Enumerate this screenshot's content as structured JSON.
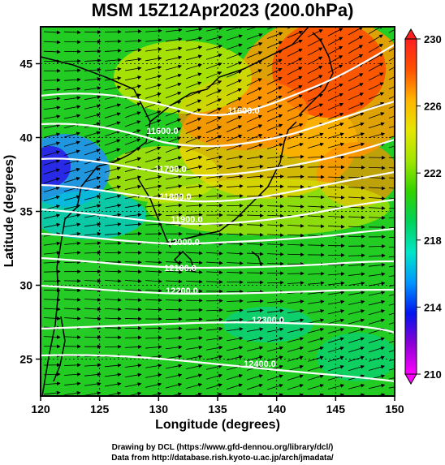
{
  "title": "MSM 15Z12Apr2023 (200.0hPa)",
  "xaxis": {
    "label": "Longitude (degrees)",
    "ticks": [
      "120",
      "125",
      "130",
      "135",
      "140",
      "145",
      "150"
    ],
    "range": [
      120,
      150
    ]
  },
  "yaxis": {
    "label": "Latitude  (degrees)",
    "ticks": [
      "25",
      "30",
      "35",
      "40",
      "45"
    ],
    "range": [
      22.5,
      47.5
    ]
  },
  "colorbar": {
    "ticks": [
      "230",
      "226",
      "222",
      "218",
      "214",
      "210"
    ],
    "range": [
      210,
      230
    ],
    "colors": [
      "#ff00ff",
      "#8a00d6",
      "#0014f0",
      "#0096ff",
      "#00e6c8",
      "#00d25a",
      "#32d200",
      "#a0e600",
      "#e6e600",
      "#ffb400",
      "#ff5000",
      "#ff1e1e"
    ]
  },
  "contours": [
    {
      "label": "11600.0"
    },
    {
      "label": "11600.0"
    },
    {
      "label": "11700.0"
    },
    {
      "label": "11800.0"
    },
    {
      "label": "11900.0"
    },
    {
      "label": "12000.0"
    },
    {
      "label": "12100.0"
    },
    {
      "label": "12200.0"
    },
    {
      "label": "12300.0"
    },
    {
      "label": "12400.0"
    }
  ],
  "credits": {
    "line1": "Drawing by DCL (https://www.gfd-dennou.org/library/dcl/)",
    "line2": "Data from http://database.rish.kyoto-u.ac.jp/arch/jmadata/"
  }
}
